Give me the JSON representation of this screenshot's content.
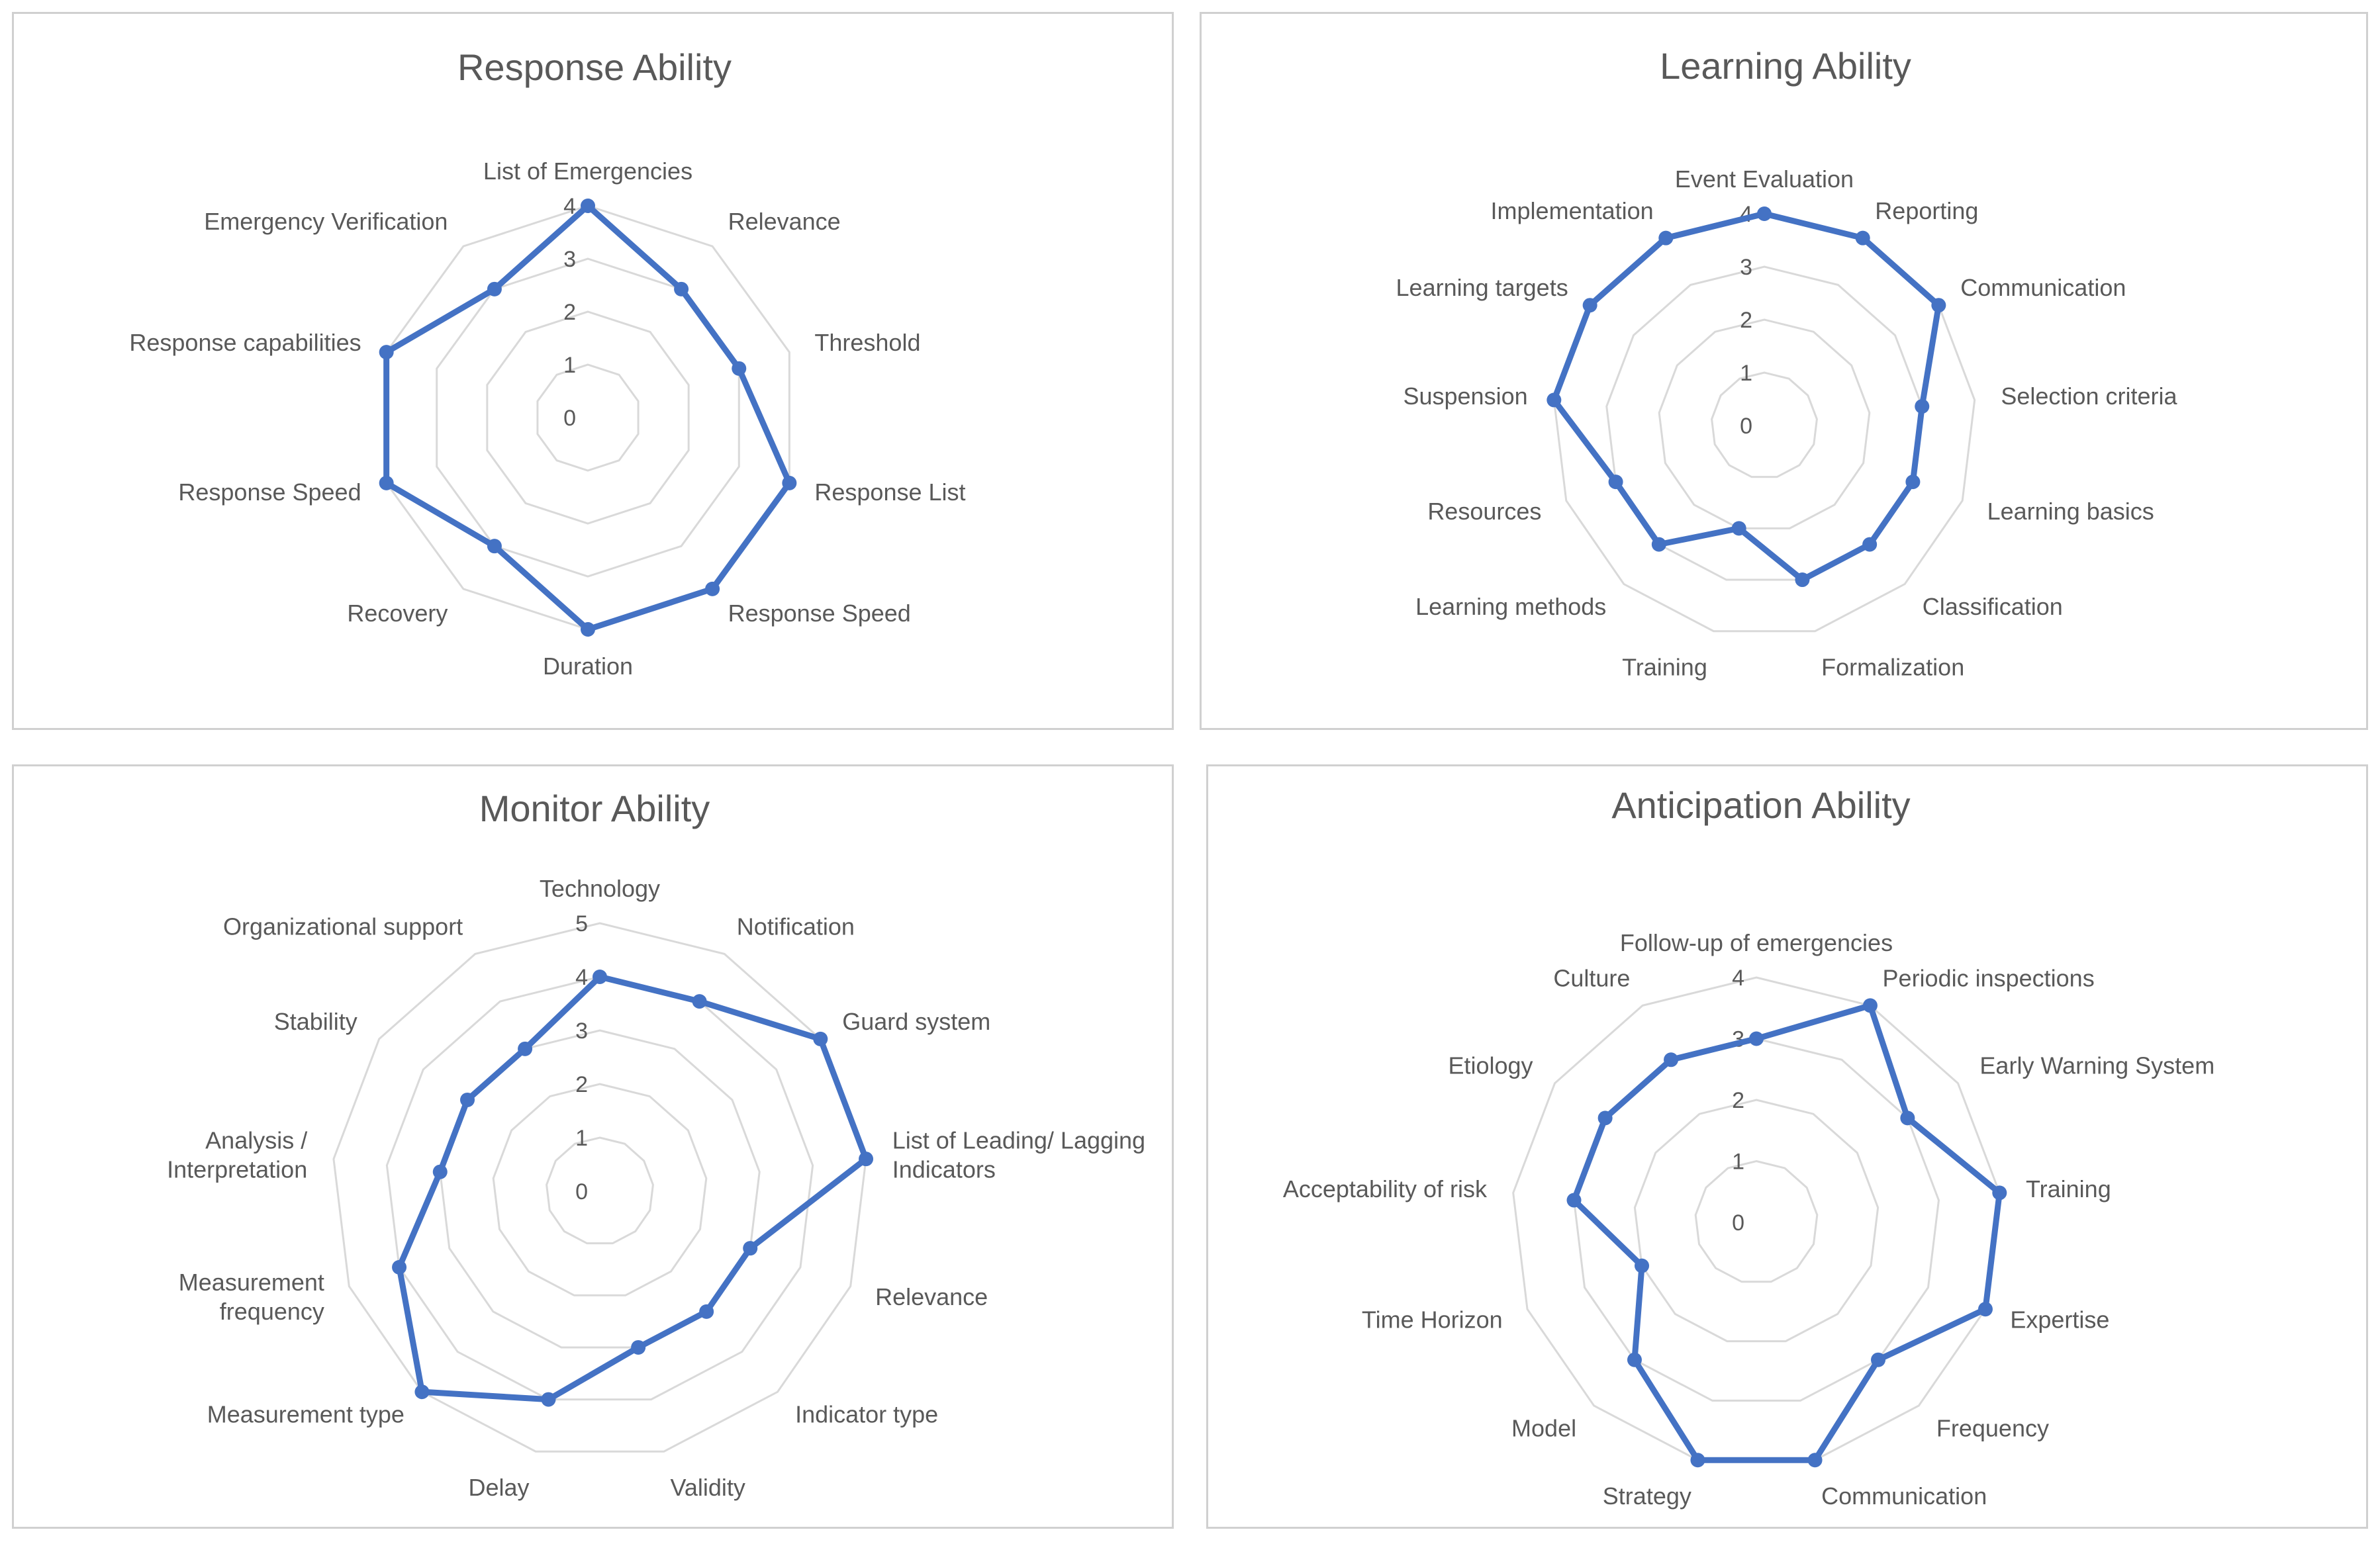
{
  "chart_data": [
    {
      "type": "radar",
      "title": "Response Ability",
      "rmax": 4,
      "ticks": [
        "0",
        "1",
        "2",
        "3",
        "4"
      ],
      "categories": [
        "List of Emergencies",
        "Relevance",
        "Threshold",
        "Response List",
        "Response Speed",
        "Duration",
        "Recovery",
        "Response Speed",
        "Response capabilities",
        "Emergency Verification"
      ],
      "values": [
        4,
        3,
        3,
        4,
        4,
        4,
        3,
        4,
        4,
        3
      ],
      "color": "#4472c4",
      "grid": true
    },
    {
      "type": "radar",
      "title": "Learning Ability",
      "rmax": 4,
      "ticks": [
        "0",
        "1",
        "2",
        "3",
        "4"
      ],
      "categories": [
        "Event Evaluation",
        "Reporting",
        "Communication",
        "Selection criteria",
        "Learning basics",
        "Classification",
        "Formalization",
        "Training",
        "Learning methods",
        "Resources",
        "Suspension",
        "Learning targets",
        "Implementation"
      ],
      "values": [
        4,
        4,
        4,
        3,
        3,
        3,
        3,
        2,
        3,
        3,
        4,
        4,
        4
      ],
      "color": "#4472c4",
      "grid": true
    },
    {
      "type": "radar",
      "title": "Monitor Ability",
      "rmax": 5,
      "ticks": [
        "0",
        "1",
        "2",
        "3",
        "4",
        "5"
      ],
      "categories": [
        "Technology",
        "Notification",
        "Guard system",
        "List of Leading/ Lagging Indicators",
        "Relevance",
        "Indicator type",
        "Validity",
        "Delay",
        "Measurement type",
        "Measurement frequency",
        "Analysis / Interpretation",
        "Stability",
        "Organizational support"
      ],
      "values": [
        4,
        4,
        5,
        5,
        3,
        3,
        3,
        4,
        5,
        4,
        3,
        3,
        3
      ],
      "color": "#4472c4",
      "grid": true
    },
    {
      "type": "radar",
      "title": "Anticipation Ability",
      "rmax": 4,
      "ticks": [
        "0",
        "1",
        "2",
        "3",
        "4"
      ],
      "categories": [
        "Follow-up of emergencies",
        "Periodic inspections",
        "Early Warning System",
        "Training",
        "Expertise",
        "Frequency",
        "Communication",
        "Strategy",
        "Model",
        "Time Horizon",
        "Acceptability of risk",
        "Etiology",
        "Culture"
      ],
      "values": [
        3,
        4,
        3,
        4,
        4,
        3,
        4,
        4,
        3,
        2,
        3,
        3,
        3
      ],
      "color": "#4472c4",
      "grid": true
    }
  ]
}
